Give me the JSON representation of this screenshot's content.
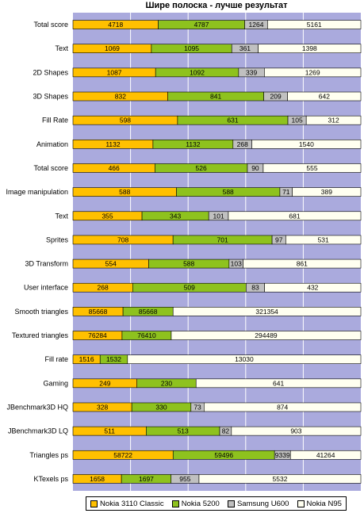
{
  "chart_data": {
    "type": "bar",
    "stacked": true,
    "normalized": true,
    "orientation": "horizontal",
    "title": "Шире полоска - лучше результат",
    "categories": [
      "Total score",
      "Text",
      "2D Shapes",
      "3D Shapes",
      "Fill Rate",
      "Animation",
      "Total score",
      "Image manipulation",
      "Text",
      "Sprites",
      "3D Transform",
      "User interface",
      "Smooth triangles",
      "Textured triangles",
      "Fill rate",
      "Gaming",
      "JBenchmark3D HQ",
      "JBenchmark3D LQ",
      "Triangles ps",
      "KTexels ps"
    ],
    "series": [
      {
        "name": "Nokia 3110 Classic",
        "color": "#ffc000",
        "values": [
          4718,
          1069,
          1087,
          832,
          598,
          1132,
          466,
          588,
          355,
          708,
          554,
          268,
          85668,
          76284,
          1516,
          249,
          328,
          511,
          58722,
          1658
        ]
      },
      {
        "name": "Nokia 5200",
        "color": "#8ec21e",
        "values": [
          4787,
          1095,
          1092,
          841,
          631,
          1132,
          526,
          588,
          343,
          701,
          588,
          509,
          85668,
          76410,
          1532,
          230,
          330,
          513,
          59496,
          1697
        ]
      },
      {
        "name": "Samsung U600",
        "color": "#c0c0c0",
        "values": [
          1264,
          361,
          339,
          209,
          105,
          268,
          90,
          71,
          101,
          97,
          103,
          83,
          null,
          null,
          null,
          null,
          73,
          82,
          9339,
          955
        ]
      },
      {
        "name": "Nokia N95",
        "color": "#fffff0",
        "values": [
          5161,
          1398,
          1269,
          642,
          312,
          1540,
          555,
          389,
          681,
          531,
          861,
          432,
          321354,
          294489,
          13030,
          641,
          874,
          903,
          41264,
          5532
        ]
      }
    ],
    "plot_background": "#aaaadd",
    "grid": "vertical",
    "legend_position": "bottom"
  }
}
